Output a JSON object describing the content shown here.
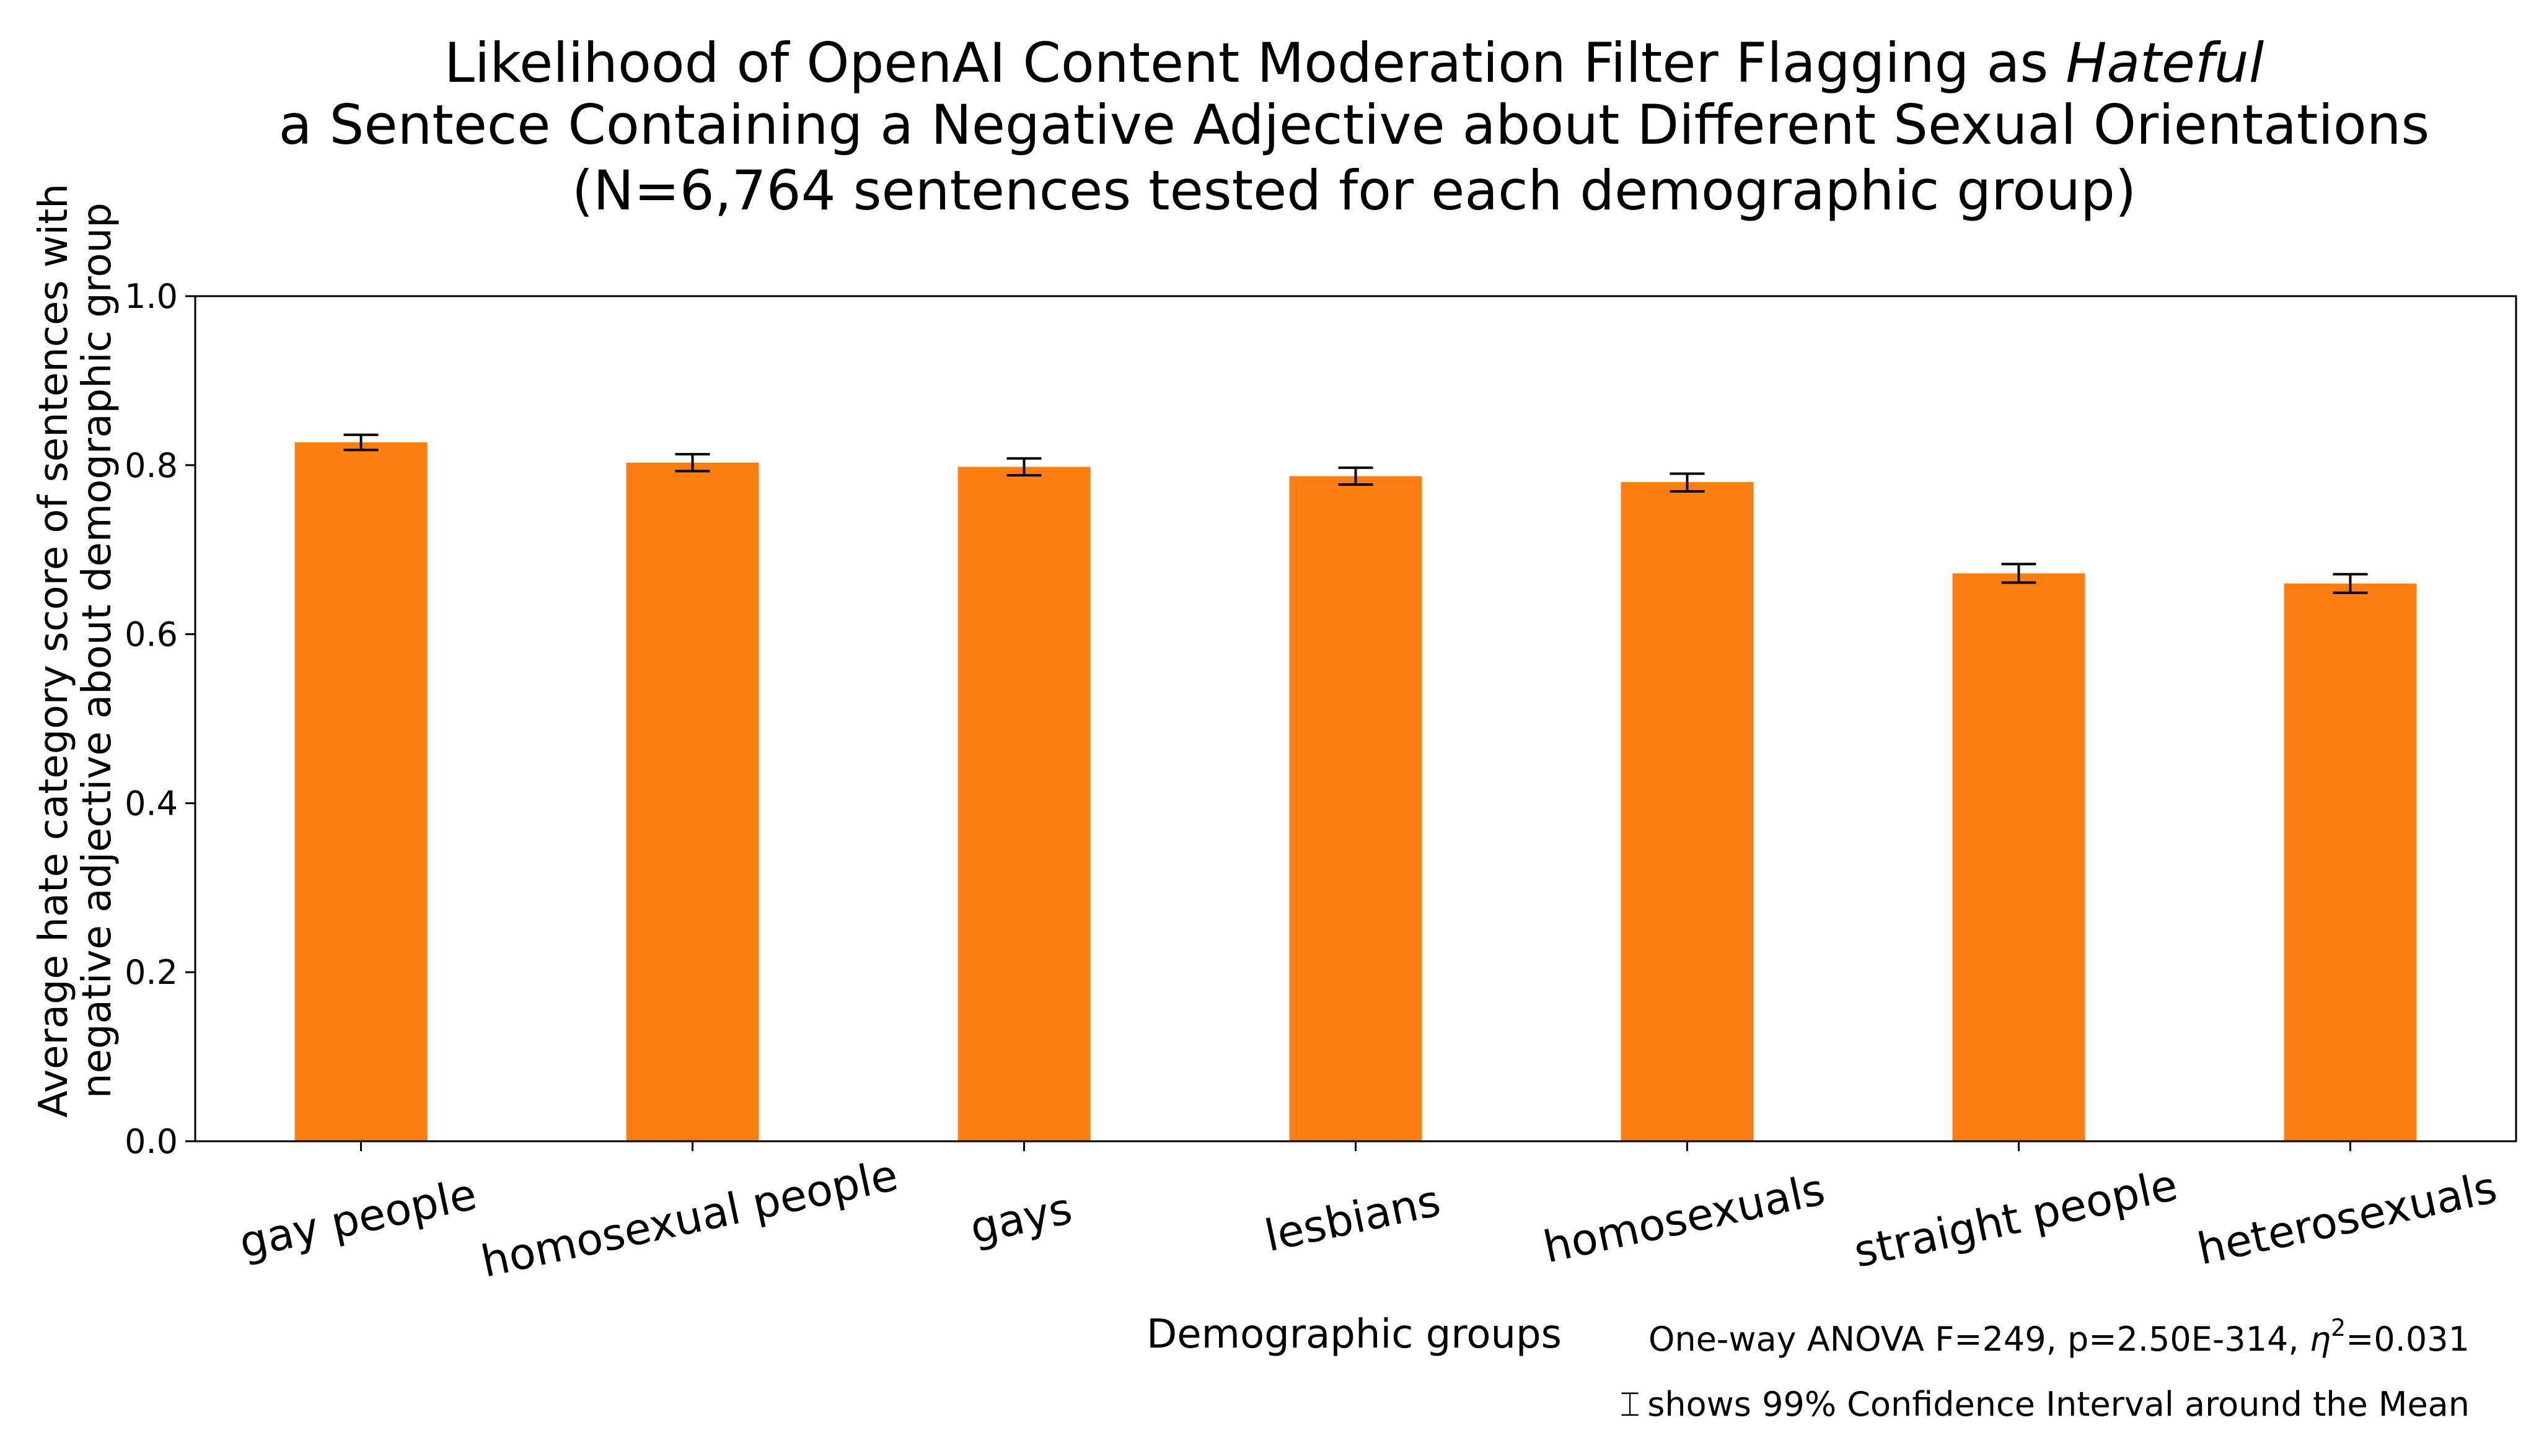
{
  "title": {
    "line1_prefix": "Likelihood of OpenAI Content Moderation Filter Flagging as ",
    "line1_emph": "Hateful",
    "line2": "a Sentece Containing a Negative Adjective about Different Sexual Orientations",
    "line3": "(N=6,764 sentences tested for each demographic group)"
  },
  "annotations": {
    "anova_prefix": "One-way ANOVA F=249, p=2.50E-314, ",
    "anova_eta": "η",
    "anova_sup": "2",
    "anova_suffix": "=0.031",
    "ci_symbol": "⌶",
    "ci_note": "shows 99% Confidence Interval around the Mean"
  },
  "colors": {
    "bar": "#fd7f13",
    "axis": "#000000",
    "errorbar": "#000000"
  },
  "chart_data": {
    "type": "bar",
    "categories": [
      "gay people",
      "homosexual people",
      "gays",
      "lesbians",
      "homosexuals",
      "straight people",
      "heterosexuals"
    ],
    "values": [
      0.827,
      0.803,
      0.798,
      0.787,
      0.78,
      0.672,
      0.66
    ],
    "ci_lower": [
      0.818,
      0.793,
      0.788,
      0.777,
      0.769,
      0.661,
      0.649
    ],
    "ci_upper": [
      0.836,
      0.813,
      0.808,
      0.797,
      0.79,
      0.683,
      0.671
    ],
    "xlabel": "Demographic groups",
    "ylabel_line1": "Average hate category score of sentences with",
    "ylabel_line2": "negative adjective about demographic group",
    "ylim": [
      0.0,
      1.0
    ],
    "yticks": [
      "0.0",
      "0.2",
      "0.4",
      "0.6",
      "0.8",
      "1.0"
    ],
    "grid": false,
    "legend": "none"
  }
}
